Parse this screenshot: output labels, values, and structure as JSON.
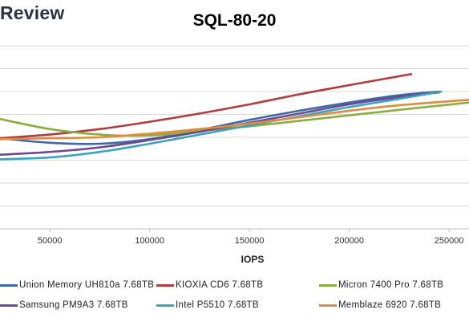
{
  "header": {
    "brand": "Review"
  },
  "chart_data": {
    "type": "line",
    "title": "SQL-80-20",
    "xlabel": "IOPS",
    "ylabel": "",
    "xlim": [
      25000,
      260000
    ],
    "ylim": [
      0,
      10
    ],
    "x_ticks": [
      "50000",
      "100000",
      "150000",
      "200000",
      "250000"
    ],
    "grid": "horizontal",
    "legend_placement": "bottom",
    "series": [
      {
        "name": "Union Memory UH810a 7.68TB",
        "color": "#3e66a8",
        "x": [
          25000,
          50000,
          75000,
          100000,
          125000,
          150000,
          175000,
          200000,
          225000,
          245000
        ],
        "y": [
          4.95,
          4.7,
          4.65,
          4.9,
          5.4,
          5.95,
          6.45,
          6.9,
          7.3,
          7.5
        ]
      },
      {
        "name": "KIOXIA CD6 7.68TB",
        "color": "#b23b3b",
        "x": [
          25000,
          50000,
          75000,
          100000,
          125000,
          150000,
          175000,
          200000,
          231000
        ],
        "y": [
          4.95,
          5.15,
          5.45,
          5.85,
          6.3,
          6.8,
          7.35,
          7.85,
          8.45
        ]
      },
      {
        "name": "Micron 7400 Pro 7.68TB",
        "color": "#8aad3e",
        "x": [
          25000,
          50000,
          75000,
          100000,
          125000,
          150000,
          175000,
          200000,
          225000,
          260000
        ],
        "y": [
          6.0,
          5.45,
          5.15,
          5.1,
          5.35,
          5.6,
          5.9,
          6.2,
          6.5,
          6.9
        ]
      },
      {
        "name": "Samsung PM9A3 7.68TB",
        "color": "#6b4a8f",
        "x": [
          25000,
          50000,
          75000,
          100000,
          125000,
          150000,
          175000,
          200000,
          225000,
          245000
        ],
        "y": [
          4.05,
          4.2,
          4.45,
          4.85,
          5.3,
          5.8,
          6.3,
          6.8,
          7.2,
          7.45
        ]
      },
      {
        "name": "Intel P5510 7.68TB",
        "color": "#3ba3bf",
        "x": [
          25000,
          50000,
          75000,
          100000,
          125000,
          150000,
          175000,
          200000,
          225000,
          246000
        ],
        "y": [
          3.8,
          3.9,
          4.2,
          4.65,
          5.15,
          5.65,
          6.15,
          6.65,
          7.1,
          7.5
        ]
      },
      {
        "name": "Memblaze 6920 7.68TB",
        "color": "#e08a3c",
        "x": [
          25000,
          50000,
          75000,
          100000,
          125000,
          150000,
          175000,
          200000,
          225000,
          260000
        ],
        "y": [
          4.9,
          4.95,
          5.0,
          5.2,
          5.45,
          5.75,
          6.1,
          6.45,
          6.75,
          7.05
        ]
      }
    ]
  }
}
